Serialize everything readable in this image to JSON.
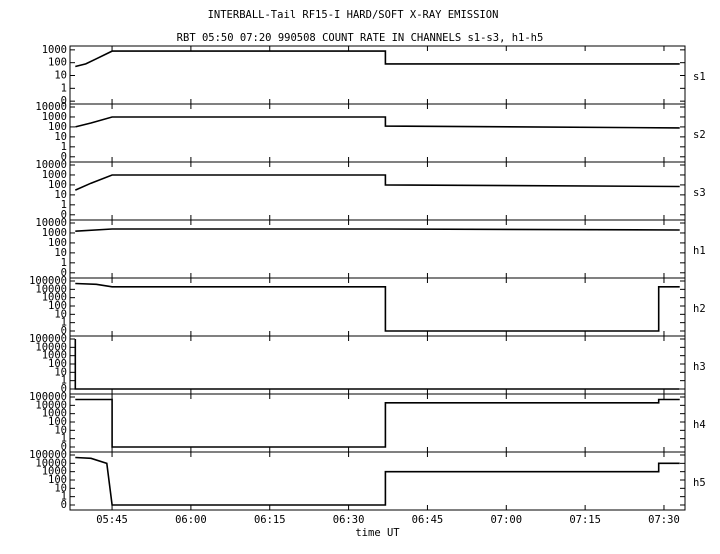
{
  "header": {
    "title": "INTERBALL-Tail RF15-I HARD/SOFT X-RAY EMISSION",
    "subtitle": "RBT 05:50 07:20 990508  COUNT RATE IN CHANNELS s1-s3, h1-h5"
  },
  "chart_data": [
    {
      "type": "line",
      "channel": "s1",
      "log_scale": true,
      "xlim": [
        "05:37",
        "07:34"
      ],
      "xticks": [
        "05:45",
        "06:00",
        "06:15",
        "06:30",
        "06:45",
        "07:00",
        "07:15",
        "07:30"
      ],
      "ylim": [
        0.06,
        2000
      ],
      "yticks": [
        {
          "value": 0.1,
          "label": "0"
        },
        1,
        10,
        100,
        1000
      ],
      "x": [
        "05:38",
        "05:40",
        "05:42",
        "05:45",
        "06:37",
        "06:37",
        "07:33"
      ],
      "series": [
        {
          "color": "#000000",
          "values": [
            50,
            80,
            200,
            800,
            800,
            80,
            80
          ]
        }
      ]
    },
    {
      "type": "line",
      "channel": "s2",
      "log_scale": true,
      "xlim": [
        "05:37",
        "07:34"
      ],
      "xticks": [
        "05:45",
        "06:00",
        "06:15",
        "06:30",
        "06:45",
        "07:00",
        "07:15",
        "07:30"
      ],
      "ylim": [
        0.03,
        20000
      ],
      "yticks": [
        {
          "value": 0.1,
          "label": "0"
        },
        1,
        10,
        100,
        1000,
        10000
      ],
      "x": [
        "05:38",
        "05:41",
        "05:45",
        "06:37",
        "06:37",
        "07:33"
      ],
      "series": [
        {
          "color": "#000000",
          "values": [
            100,
            250,
            1000,
            1000,
            120,
            80
          ]
        }
      ]
    },
    {
      "type": "line",
      "channel": "s3",
      "log_scale": true,
      "xlim": [
        "05:37",
        "07:34"
      ],
      "xticks": [
        "05:45",
        "06:00",
        "06:15",
        "06:30",
        "06:45",
        "07:00",
        "07:15",
        "07:30"
      ],
      "ylim": [
        0.03,
        20000
      ],
      "yticks": [
        {
          "value": 0.1,
          "label": "0"
        },
        1,
        10,
        100,
        1000,
        10000
      ],
      "x": [
        "05:38",
        "05:41",
        "05:45",
        "06:37",
        "06:37",
        "07:33"
      ],
      "series": [
        {
          "color": "#000000",
          "values": [
            30,
            150,
            1000,
            1000,
            100,
            70
          ]
        }
      ]
    },
    {
      "type": "line",
      "channel": "h1",
      "log_scale": true,
      "xlim": [
        "05:37",
        "07:34"
      ],
      "xticks": [
        "05:45",
        "06:00",
        "06:15",
        "06:30",
        "06:45",
        "07:00",
        "07:15",
        "07:30"
      ],
      "ylim": [
        0.03,
        20000
      ],
      "yticks": [
        {
          "value": 0.1,
          "label": "0"
        },
        1,
        10,
        100,
        1000,
        10000
      ],
      "x": [
        "05:38",
        "05:45",
        "06:37",
        "07:33"
      ],
      "series": [
        {
          "color": "#000000",
          "values": [
            1500,
            2500,
            2500,
            2000
          ]
        }
      ]
    },
    {
      "type": "line",
      "channel": "h2",
      "log_scale": true,
      "xlim": [
        "05:37",
        "07:34"
      ],
      "xticks": [
        "05:45",
        "06:00",
        "06:15",
        "06:30",
        "06:45",
        "07:00",
        "07:15",
        "07:30"
      ],
      "ylim": [
        0.025,
        230000
      ],
      "yticks": [
        {
          "value": 0.1,
          "label": "0"
        },
        1,
        10,
        100,
        1000,
        10000,
        100000
      ],
      "x": [
        "05:38",
        "05:42",
        "05:45",
        "05:45",
        "06:37",
        "06:37",
        "07:29",
        "07:29",
        "07:33"
      ],
      "series": [
        {
          "color": "#000000",
          "values": [
            50000,
            40000,
            20000,
            20000,
            20000,
            0.1,
            0.1,
            20000,
            20000
          ]
        }
      ]
    },
    {
      "type": "line",
      "channel": "h3",
      "log_scale": true,
      "xlim": [
        "05:37",
        "07:34"
      ],
      "xticks": [
        "05:45",
        "06:00",
        "06:15",
        "06:30",
        "06:45",
        "07:00",
        "07:15",
        "07:30"
      ],
      "ylim": [
        0.025,
        230000
      ],
      "yticks": [
        {
          "value": 0.1,
          "label": "0"
        },
        1,
        10,
        100,
        1000,
        10000,
        100000
      ],
      "x": [
        "05:38",
        "05:38",
        "07:33"
      ],
      "series": [
        {
          "color": "#000000",
          "values": [
            100000,
            0.1,
            0.1
          ]
        }
      ]
    },
    {
      "type": "line",
      "channel": "h4",
      "log_scale": true,
      "xlim": [
        "05:37",
        "07:34"
      ],
      "xticks": [
        "05:45",
        "06:00",
        "06:15",
        "06:30",
        "06:45",
        "07:00",
        "07:15",
        "07:30"
      ],
      "ylim": [
        0.025,
        230000
      ],
      "yticks": [
        {
          "value": 0.1,
          "label": "0"
        },
        1,
        10,
        100,
        1000,
        10000,
        100000
      ],
      "x": [
        "05:38",
        "05:45",
        "05:45",
        "06:37",
        "06:37",
        "07:29",
        "07:29",
        "07:33"
      ],
      "series": [
        {
          "color": "#000000",
          "values": [
            50000,
            50000,
            0.1,
            0.1,
            20000,
            20000,
            50000,
            50000
          ]
        }
      ]
    },
    {
      "type": "line",
      "channel": "h5",
      "log_scale": true,
      "xlim": [
        "05:37",
        "07:34"
      ],
      "xticks": [
        "05:45",
        "06:00",
        "06:15",
        "06:30",
        "06:45",
        "07:00",
        "07:15",
        "07:30"
      ],
      "xlabel": "time UT",
      "ylim": [
        0.025,
        230000
      ],
      "yticks": [
        {
          "value": 0.1,
          "label": "0"
        },
        1,
        10,
        100,
        1000,
        10000,
        100000
      ],
      "x": [
        "05:38",
        "05:41",
        "05:44",
        "05:45",
        "06:37",
        "06:37",
        "07:29",
        "07:29",
        "07:33"
      ],
      "series": [
        {
          "color": "#000000",
          "values": [
            50000,
            40000,
            10000,
            0.1,
            0.1,
            1000,
            1000,
            10000,
            10000
          ]
        }
      ]
    }
  ]
}
